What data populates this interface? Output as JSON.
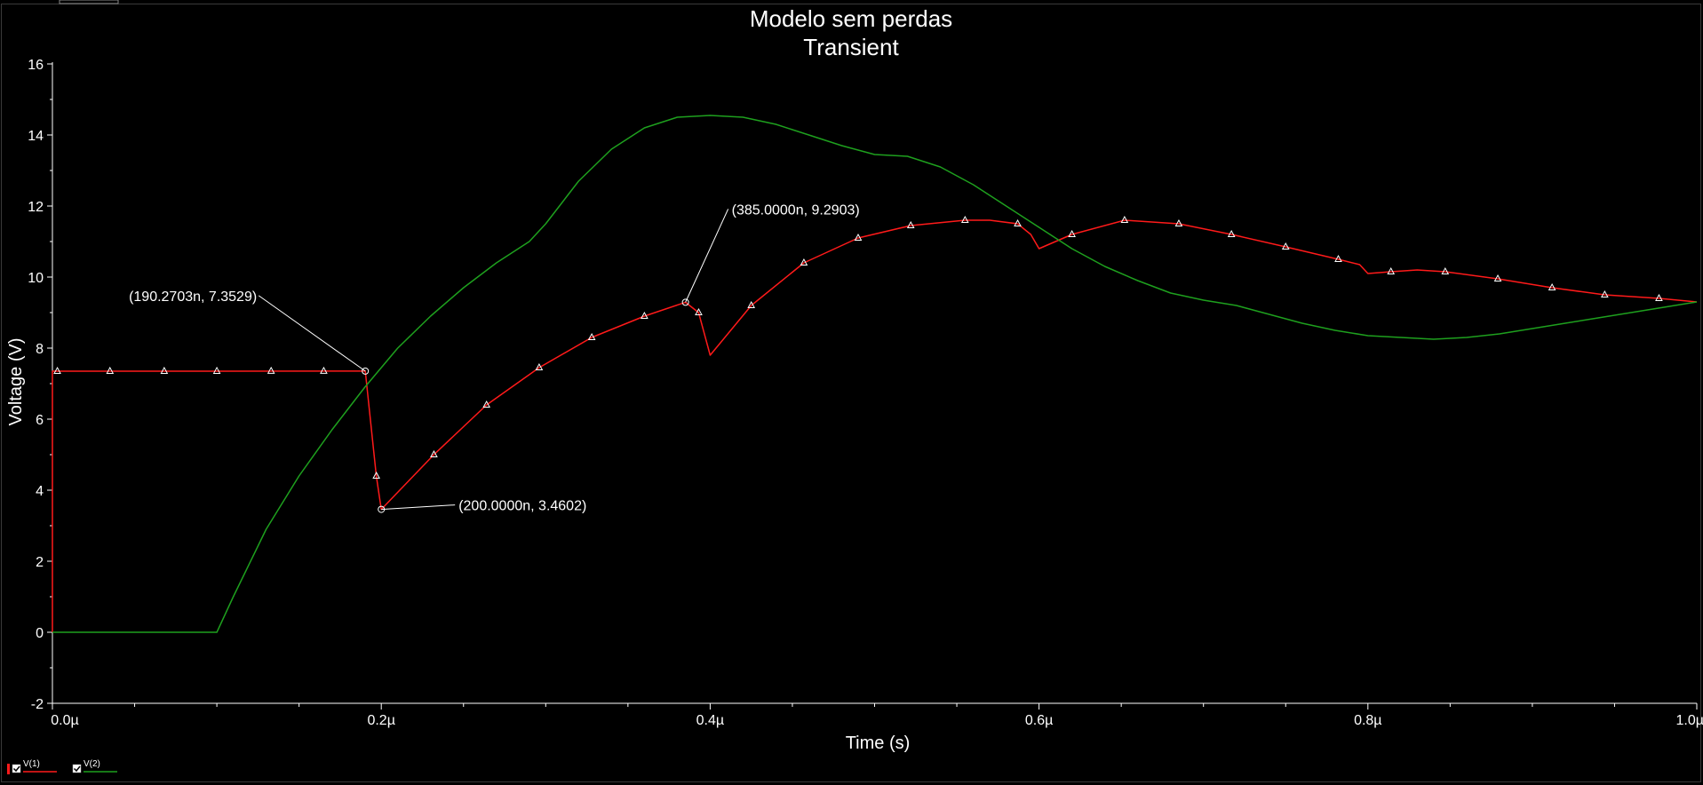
{
  "chart_data": {
    "type": "line",
    "title": "Modelo sem perdas",
    "subtitle": "Transient",
    "xlabel": "Time (s)",
    "ylabel": "Voltage (V)",
    "xlim": [
      0,
      1.0
    ],
    "ylim": [
      -2,
      16
    ],
    "x_unit_note": "µs",
    "x_ticks": [
      {
        "value": 0.0,
        "label": "0.0µ"
      },
      {
        "value": 0.2,
        "label": "0.2µ"
      },
      {
        "value": 0.4,
        "label": "0.4µ"
      },
      {
        "value": 0.6,
        "label": "0.6µ"
      },
      {
        "value": 0.8,
        "label": "0.8µ"
      },
      {
        "value": 1.0,
        "label": "1.0µ"
      }
    ],
    "y_ticks": [
      {
        "value": -2,
        "label": "-2"
      },
      {
        "value": 0,
        "label": "0"
      },
      {
        "value": 2,
        "label": "2"
      },
      {
        "value": 4,
        "label": "4"
      },
      {
        "value": 6,
        "label": "6"
      },
      {
        "value": 8,
        "label": "8"
      },
      {
        "value": 10,
        "label": "10"
      },
      {
        "value": 12,
        "label": "12"
      },
      {
        "value": 14,
        "label": "14"
      },
      {
        "value": 16,
        "label": "16"
      }
    ],
    "grid": false,
    "legend_position": "bottom-left",
    "series": [
      {
        "name": "V(1)",
        "color": "#ff1a1a",
        "marker": "triangle",
        "points": [
          [
            0.0,
            0.0
          ],
          [
            0.0,
            7.35
          ],
          [
            0.19027,
            7.3529
          ],
          [
            0.197,
            4.4
          ],
          [
            0.2,
            3.4602
          ],
          [
            0.232,
            5.0
          ],
          [
            0.264,
            6.4
          ],
          [
            0.296,
            7.45
          ],
          [
            0.328,
            8.3
          ],
          [
            0.36,
            8.9
          ],
          [
            0.385,
            9.2903
          ],
          [
            0.393,
            9.0
          ],
          [
            0.4,
            7.8
          ],
          [
            0.425,
            9.2
          ],
          [
            0.457,
            10.4
          ],
          [
            0.49,
            11.1
          ],
          [
            0.522,
            11.45
          ],
          [
            0.555,
            11.6
          ],
          [
            0.57,
            11.6
          ],
          [
            0.587,
            11.5
          ],
          [
            0.595,
            11.2
          ],
          [
            0.6,
            10.8
          ],
          [
            0.62,
            11.2
          ],
          [
            0.652,
            11.6
          ],
          [
            0.685,
            11.5
          ],
          [
            0.717,
            11.2
          ],
          [
            0.75,
            10.85
          ],
          [
            0.782,
            10.5
          ],
          [
            0.795,
            10.35
          ],
          [
            0.8,
            10.1
          ],
          [
            0.814,
            10.15
          ],
          [
            0.83,
            10.2
          ],
          [
            0.847,
            10.15
          ],
          [
            0.879,
            9.95
          ],
          [
            0.912,
            9.7
          ],
          [
            0.944,
            9.5
          ],
          [
            0.977,
            9.4
          ],
          [
            1.0,
            9.3
          ]
        ],
        "markers_at": [
          0.003,
          0.035,
          0.068,
          0.1,
          0.133,
          0.165,
          0.197,
          0.232,
          0.264,
          0.296,
          0.328,
          0.36,
          0.393,
          0.425,
          0.457,
          0.49,
          0.522,
          0.555,
          0.587,
          0.62,
          0.652,
          0.685,
          0.717,
          0.75,
          0.782,
          0.814,
          0.847,
          0.879,
          0.912,
          0.944,
          0.977
        ]
      },
      {
        "name": "V(2)",
        "color": "#1ea01e",
        "points": [
          [
            0.0,
            0.0
          ],
          [
            0.1,
            0.0
          ],
          [
            0.11,
            1.0
          ],
          [
            0.13,
            2.9
          ],
          [
            0.15,
            4.4
          ],
          [
            0.17,
            5.7
          ],
          [
            0.19,
            6.9
          ],
          [
            0.21,
            8.0
          ],
          [
            0.23,
            8.9
          ],
          [
            0.25,
            9.7
          ],
          [
            0.27,
            10.4
          ],
          [
            0.29,
            11.0
          ],
          [
            0.3,
            11.5
          ],
          [
            0.32,
            12.7
          ],
          [
            0.34,
            13.6
          ],
          [
            0.36,
            14.2
          ],
          [
            0.38,
            14.5
          ],
          [
            0.4,
            14.55
          ],
          [
            0.42,
            14.5
          ],
          [
            0.44,
            14.3
          ],
          [
            0.46,
            14.0
          ],
          [
            0.48,
            13.7
          ],
          [
            0.5,
            13.45
          ],
          [
            0.52,
            13.4
          ],
          [
            0.54,
            13.1
          ],
          [
            0.56,
            12.6
          ],
          [
            0.58,
            12.0
          ],
          [
            0.6,
            11.4
          ],
          [
            0.62,
            10.8
          ],
          [
            0.64,
            10.3
          ],
          [
            0.66,
            9.9
          ],
          [
            0.68,
            9.55
          ],
          [
            0.7,
            9.35
          ],
          [
            0.72,
            9.2
          ],
          [
            0.74,
            8.95
          ],
          [
            0.76,
            8.7
          ],
          [
            0.78,
            8.5
          ],
          [
            0.8,
            8.35
          ],
          [
            0.82,
            8.3
          ],
          [
            0.84,
            8.25
          ],
          [
            0.86,
            8.3
          ],
          [
            0.88,
            8.4
          ],
          [
            0.9,
            8.55
          ],
          [
            0.92,
            8.7
          ],
          [
            0.94,
            8.85
          ],
          [
            0.96,
            9.0
          ],
          [
            0.98,
            9.15
          ],
          [
            1.0,
            9.3
          ]
        ]
      }
    ],
    "annotations": [
      {
        "label": "(190.2703n, 7.3529)",
        "x": 0.19027,
        "y": 7.3529
      },
      {
        "label": "(200.0000n, 3.4602)",
        "x": 0.2,
        "y": 3.4602
      },
      {
        "label": "(385.0000n, 9.2903)",
        "x": 0.385,
        "y": 9.2903
      }
    ]
  },
  "legend": {
    "items": [
      {
        "label": "V(1)",
        "color": "#ff1a1a",
        "checked": true
      },
      {
        "label": "V(2)",
        "color": "#1ea01e",
        "checked": true
      }
    ]
  }
}
